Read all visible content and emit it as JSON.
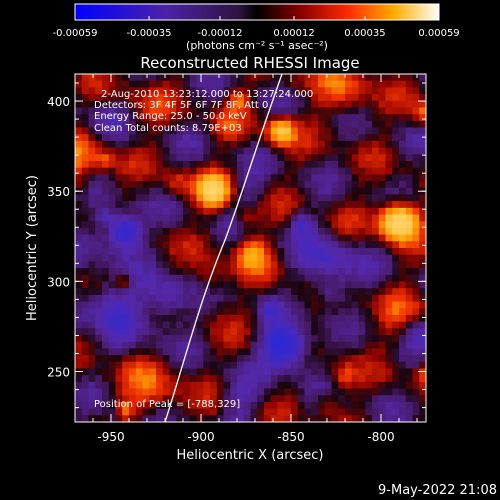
{
  "colorbar": {
    "tick_labels": [
      "-0.00059",
      "-0.00035",
      "-0.00012",
      "0.00012",
      "0.00035",
      "0.00059"
    ],
    "unit_label": "(photons cm⁻² s⁻¹ asec⁻²)",
    "range": [
      -0.00059,
      0.00059
    ]
  },
  "plot": {
    "title": "Reconstructed RHESSI Image",
    "xlabel": "Heliocentric X (arcsec)",
    "ylabel": "Heliocentric Y (arcsec)",
    "x_ticks": [
      "-950",
      "-900",
      "-850",
      "-800"
    ],
    "y_ticks": [
      "250",
      "300",
      "350",
      "400"
    ],
    "xlim": [
      -970,
      -775
    ],
    "ylim": [
      222,
      415
    ]
  },
  "annotations": {
    "time_range": "2-Aug-2010 13:23:12.000 to 13:27:24.000",
    "detectors": "Detectors: 3F 4F 5F 6F 7F 8F, Att 0",
    "energy_range": "Energy Range: 25.0 - 50.0 keV",
    "method": "Clean    Total counts: 8.79E+03",
    "peak": "Position of Peak = [-788,329]"
  },
  "footer": {
    "date": "9-May-2022 21:08"
  }
}
